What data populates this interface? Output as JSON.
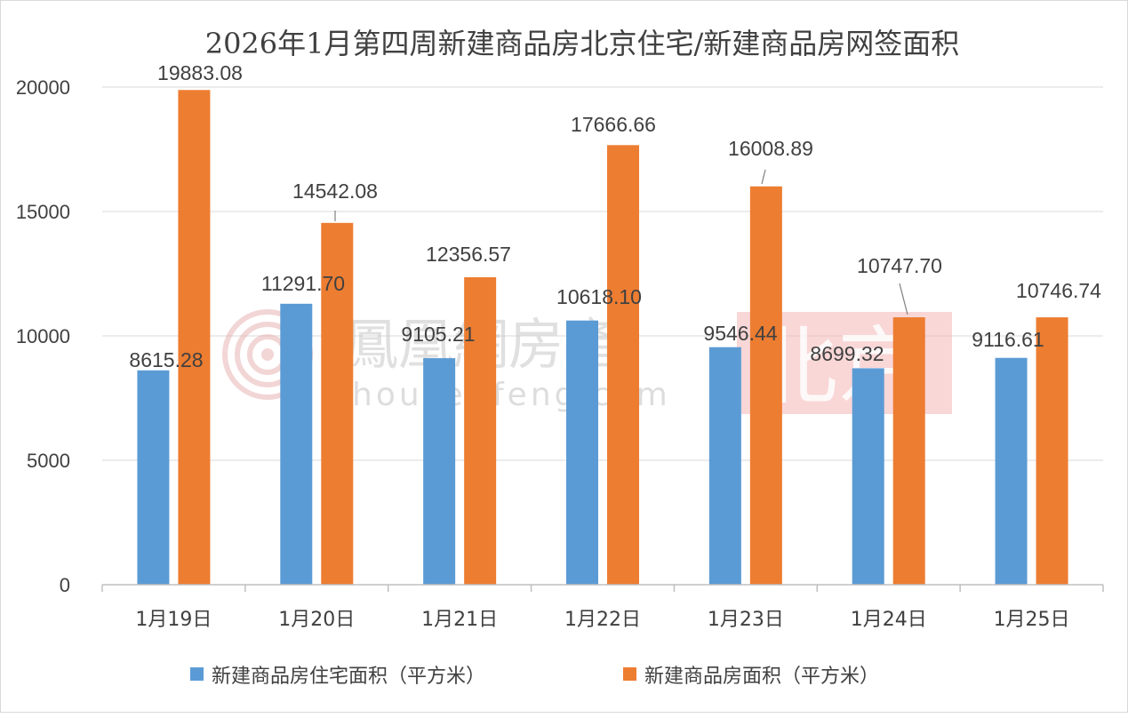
{
  "chart_data": {
    "type": "bar",
    "title": "2026年1月第四周新建商品房北京住宅/新建商品房网签面积",
    "categories": [
      "1月19日",
      "1月20日",
      "1月21日",
      "1月22日",
      "1月23日",
      "1月24日",
      "1月25日"
    ],
    "series": [
      {
        "name": "新建商品房住宅面积（平方米）",
        "color": "#5b9bd5",
        "values": [
          8615.28,
          11291.7,
          9105.21,
          10618.1,
          9546.44,
          8699.32,
          9116.61
        ],
        "labels": [
          "8615.28",
          "11291.70",
          "9105.21",
          "10618.10",
          "9546.44",
          "8699.32",
          "9116.61"
        ]
      },
      {
        "name": "新建商品房面积（平方米）",
        "color": "#ed7d31",
        "values": [
          19883.08,
          14542.08,
          12356.57,
          17666.66,
          16008.89,
          10747.7,
          10746.74
        ],
        "labels": [
          "19883.08",
          "14542.08",
          "12356.57",
          "17666.66",
          "16008.89",
          "10747.70",
          "10746.74"
        ]
      }
    ],
    "ylim": [
      0,
      20000
    ],
    "yticks": [
      "0",
      "5000",
      "10000",
      "15000",
      "20000"
    ],
    "xlabel": "",
    "ylabel": "",
    "grid": true,
    "legend_position": "bottom"
  },
  "watermark": {
    "brand": "鳳凰網房產",
    "site": "house.ifeng.com",
    "city": "北京",
    "icon": "ifeng-phoenix-logo"
  }
}
